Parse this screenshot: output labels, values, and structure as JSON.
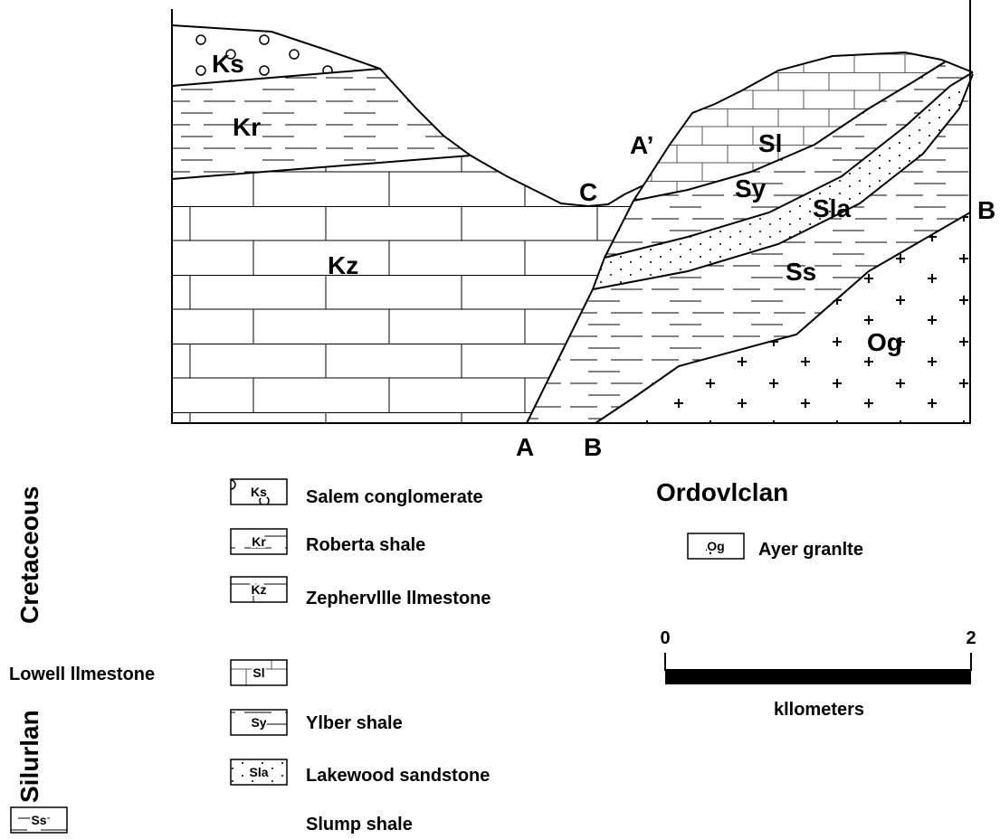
{
  "cross_section": {
    "unit_labels": [
      "Ks",
      "Kr",
      "Kz",
      "Sl",
      "Sy",
      "Sla",
      "Ss",
      "Og"
    ],
    "point_labels": [
      "C",
      "A’",
      "B",
      "A",
      "B"
    ]
  },
  "legend": {
    "periods": [
      "Cretaceous",
      "Silurlan",
      "Ordovlclan"
    ],
    "units": [
      {
        "symbol": "Ks",
        "name": "Salem conglomerate"
      },
      {
        "symbol": "Kr",
        "name": "Roberta shale"
      },
      {
        "symbol": "Kz",
        "name": "Zephervllle llmestone"
      },
      {
        "symbol": "Sl",
        "name": "Lowell llmestone"
      },
      {
        "symbol": "Sy",
        "name": "Ylber shale"
      },
      {
        "symbol": "Sla",
        "name": "Lakewood sandstone"
      },
      {
        "symbol": "Ss",
        "name": "Slump shale"
      },
      {
        "symbol": "Og",
        "name": "Ayer granlte"
      }
    ]
  },
  "scale": {
    "ticks": [
      "0",
      "2"
    ],
    "unit": "kllometers"
  }
}
